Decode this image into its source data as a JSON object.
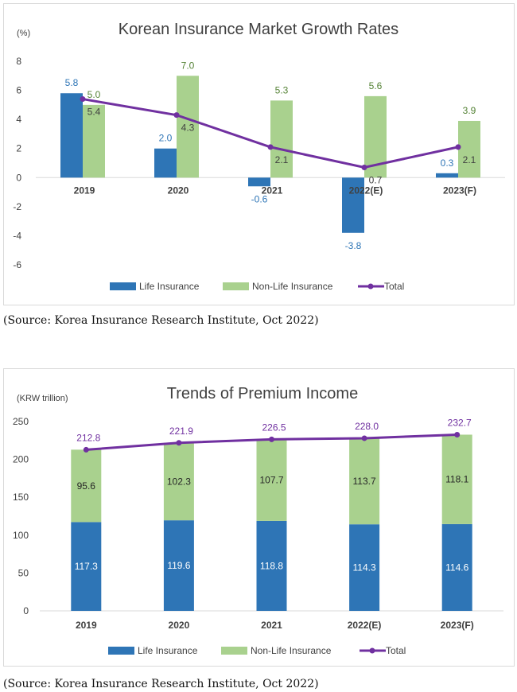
{
  "colors": {
    "life": "#2e75b6",
    "nonlife": "#a9d18e",
    "total": "#7030a0",
    "life_label": "#2e75b6",
    "nonlife_label": "#548235",
    "axis": "#d9d9d9"
  },
  "source1": "(Source: Korea Insurance Research Institute, Oct 2022)",
  "source2": "(Source: Korea Insurance Research Institute, Oct 2022)",
  "chart_data": [
    {
      "type": "bar",
      "title": "Korean Insurance Market Growth Rates",
      "unit_label": "(%)",
      "categories": [
        "2019",
        "2020",
        "2021",
        "2022(E)",
        "2023(F)"
      ],
      "ylim": [
        -6,
        8
      ],
      "yticks": [
        8,
        6,
        4,
        2,
        0,
        -2,
        -4,
        -6
      ],
      "series": [
        {
          "name": "Life Insurance",
          "kind": "bar",
          "values": [
            5.8,
            2.0,
            -0.6,
            -3.8,
            0.3
          ],
          "labels": [
            "5.8",
            "2.0",
            "-0.6",
            "-3.8",
            "0.3"
          ]
        },
        {
          "name": "Non-Life Insurance",
          "kind": "bar",
          "values": [
            5.0,
            7.0,
            5.3,
            5.6,
            3.9
          ],
          "labels": [
            "5.0",
            "7.0",
            "5.3",
            "5.6",
            "3.9"
          ]
        },
        {
          "name": "Total",
          "kind": "line",
          "values": [
            5.4,
            4.3,
            2.1,
            0.7,
            2.1
          ],
          "labels": [
            "5.4",
            "4.3",
            "2.1",
            "0.7",
            "2.1"
          ]
        }
      ],
      "legend": "bottom",
      "grid": false
    },
    {
      "type": "bar",
      "stacked": true,
      "title": "Trends of Premium Income",
      "unit_label": "(KRW trillion)",
      "categories": [
        "2019",
        "2020",
        "2021",
        "2022(E)",
        "2023(F)"
      ],
      "ylim": [
        0,
        250
      ],
      "yticks": [
        250,
        200,
        150,
        100,
        50,
        0
      ],
      "series": [
        {
          "name": "Life Insurance",
          "kind": "bar",
          "values": [
            117.3,
            119.6,
            118.8,
            114.3,
            114.6
          ],
          "labels": [
            "117.3",
            "119.6",
            "118.8",
            "114.3",
            "114.6"
          ]
        },
        {
          "name": "Non-Life Insurance",
          "kind": "bar",
          "values": [
            95.6,
            102.3,
            107.7,
            113.7,
            118.1
          ],
          "labels": [
            "95.6",
            "102.3",
            "107.7",
            "113.7",
            "118.1"
          ]
        },
        {
          "name": "Total",
          "kind": "line",
          "values": [
            212.8,
            221.9,
            226.5,
            228.0,
            232.7
          ],
          "labels": [
            "212.8",
            "221.9",
            "226.5",
            "228.0",
            "232.7"
          ]
        }
      ],
      "legend": "bottom",
      "grid": false
    }
  ]
}
